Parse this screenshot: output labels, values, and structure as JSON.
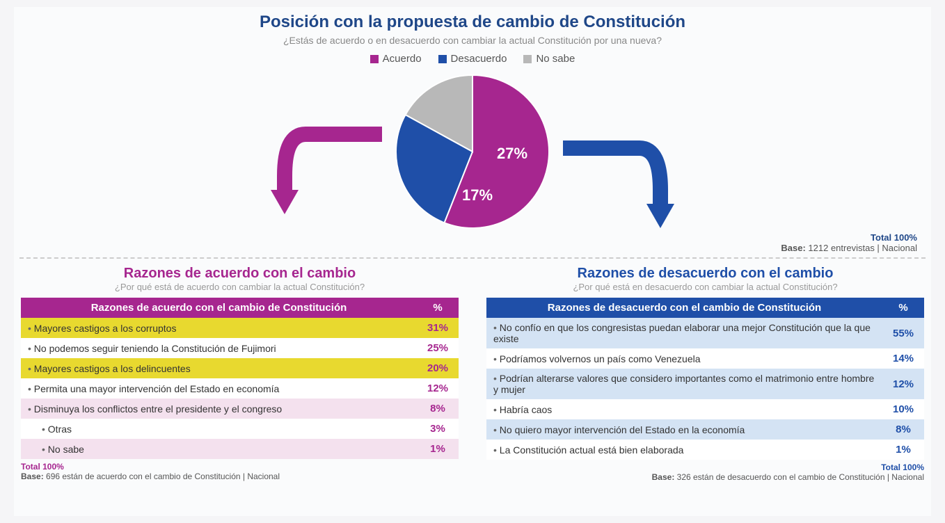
{
  "colors": {
    "acuerdo": "#a6268f",
    "desacuerdo": "#1f4fa8",
    "nosabe": "#b8b8b8",
    "title_blue": "#1f4788",
    "highlight": "#e8d92f",
    "agree_row_light": "#f4e1ee",
    "agree_row_white": "#ffffff",
    "disagree_row_light": "#d4e3f4",
    "disagree_row_white": "#ffffff",
    "subtitle_gray": "#888888"
  },
  "header": {
    "title": "Posición con la propuesta de cambio de Constitución",
    "subtitle": "¿Estás de acuerdo o en desacuerdo con cambiar la actual Constitución por una nueva?"
  },
  "legend": [
    {
      "label": "Acuerdo",
      "color": "#a6268f"
    },
    {
      "label": "Desacuerdo",
      "color": "#1f4fa8"
    },
    {
      "label": "No sabe",
      "color": "#b8b8b8"
    }
  ],
  "pie": {
    "slices": [
      {
        "label": "56%",
        "value": 56,
        "color": "#a6268f"
      },
      {
        "label": "27%",
        "value": 27,
        "color": "#1f4fa8"
      },
      {
        "label": "17%",
        "value": 17,
        "color": "#b8b8b8"
      }
    ],
    "radius": 110
  },
  "top_base": {
    "total": "Total 100%",
    "base": "Base: 1212 entrevistas | Nacional"
  },
  "agree": {
    "title": "Razones de acuerdo con el cambio",
    "subtitle": "¿Por qué está de acuerdo con cambiar la actual Constitución?",
    "header_reason": "Razones de acuerdo con el cambio de Constitución",
    "header_pct": "%",
    "color": "#a6268f",
    "rows": [
      {
        "text": "Mayores castigos a los corruptos",
        "pct": "31%",
        "highlight": true,
        "alt": true
      },
      {
        "text": "No podemos seguir teniendo la Constitución de Fujimori",
        "pct": "25%",
        "highlight": false,
        "alt": false
      },
      {
        "text": "Mayores castigos a los delincuentes",
        "pct": "20%",
        "highlight": true,
        "alt": true
      },
      {
        "text": "Permita una mayor intervención del Estado en economía",
        "pct": "12%",
        "highlight": false,
        "alt": false
      },
      {
        "text": "Disminuya los conflictos entre el presidente y el congreso",
        "pct": "8%",
        "highlight": false,
        "alt": true
      },
      {
        "text": "Otras",
        "pct": "3%",
        "highlight": false,
        "alt": false,
        "indent": true
      },
      {
        "text": "No sabe",
        "pct": "1%",
        "highlight": false,
        "alt": true,
        "indent": true
      }
    ],
    "footer_total": "Total 100%",
    "footer_base": "Base: 696 están de acuerdo con el cambio de Constitución | Nacional"
  },
  "disagree": {
    "title": "Razones de desacuerdo con el cambio",
    "subtitle": "¿Por qué está en desacuerdo con cambiar la actual Constitución?",
    "header_reason": "Razones de desacuerdo con el cambio de Constitución",
    "header_pct": "%",
    "color": "#1f4fa8",
    "rows": [
      {
        "text": "No confío en que los congresistas puedan elaborar una mejor Constitución que la que existe",
        "pct": "55%",
        "alt": true
      },
      {
        "text": "Podríamos volvernos un país como Venezuela",
        "pct": "14%",
        "alt": false
      },
      {
        "text": "Podrían alterarse valores que considero importantes como el matrimonio entre hombre y mujer",
        "pct": "12%",
        "alt": true
      },
      {
        "text": "Habría caos",
        "pct": "10%",
        "alt": false
      },
      {
        "text": "No quiero mayor intervención del Estado en la economía",
        "pct": "8%",
        "alt": true
      },
      {
        "text": "La Constitución actual está bien elaborada",
        "pct": "1%",
        "alt": false
      }
    ],
    "footer_total": "Total 100%",
    "footer_base": "Base: 326 están de desacuerdo con el cambio de Constitución  | Nacional"
  }
}
